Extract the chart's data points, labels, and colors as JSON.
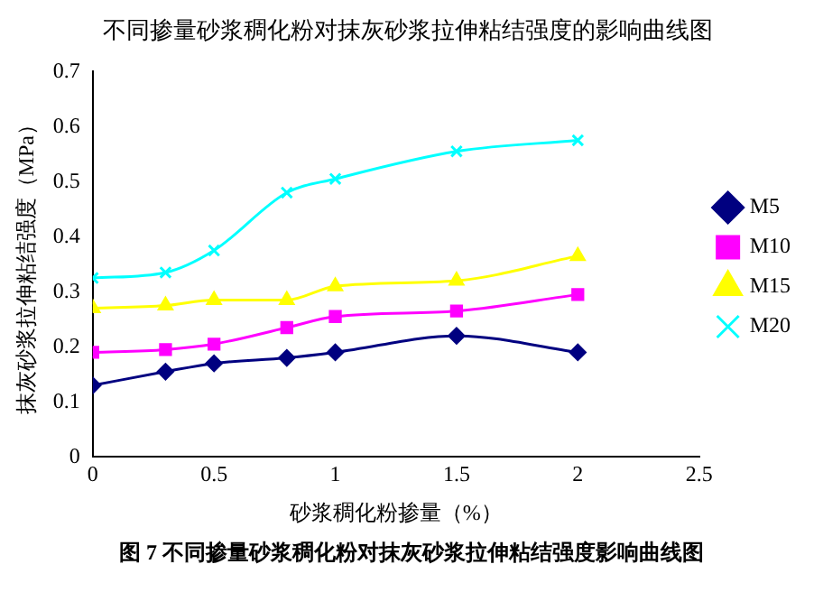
{
  "chart_data": {
    "type": "line",
    "title": "不同掺量砂浆稠化粉对抹灰砂浆拉伸粘结强度的影响曲线图",
    "xlabel": "砂浆稠化粉掺量（%）",
    "ylabel": "抹灰砂浆拉伸粘结强度（MPa）",
    "x": [
      0,
      0.3,
      0.5,
      0.8,
      1,
      1.5,
      2
    ],
    "series": [
      {
        "name": "M5",
        "color": "#000080",
        "marker": "diamond",
        "values": [
          0.13,
          0.155,
          0.17,
          0.18,
          0.19,
          0.22,
          0.19
        ]
      },
      {
        "name": "M10",
        "color": "#ff00ff",
        "marker": "square",
        "values": [
          0.19,
          0.195,
          0.205,
          0.235,
          0.255,
          0.265,
          0.295
        ]
      },
      {
        "name": "M15",
        "color": "#ffff00",
        "marker": "triangle",
        "values": [
          0.27,
          0.275,
          0.285,
          0.285,
          0.31,
          0.32,
          0.365
        ]
      },
      {
        "name": "M20",
        "color": "#00ffff",
        "marker": "cross",
        "values": [
          0.325,
          0.335,
          0.375,
          0.48,
          0.505,
          0.555,
          0.575
        ]
      }
    ],
    "xlim": [
      0,
      2.5
    ],
    "xticks": [
      0,
      0.5,
      1,
      1.5,
      2,
      2.5
    ],
    "ylim": [
      0,
      0.7
    ],
    "yticks": [
      0,
      0.1,
      0.2,
      0.3,
      0.4,
      0.5,
      0.6,
      0.7
    ],
    "grid": false,
    "legend": "right",
    "line_style": "solid",
    "annotations": [
      "图 7  不同掺量砂浆稠化粉对抹灰砂浆拉伸粘结强度影响曲线图"
    ]
  }
}
